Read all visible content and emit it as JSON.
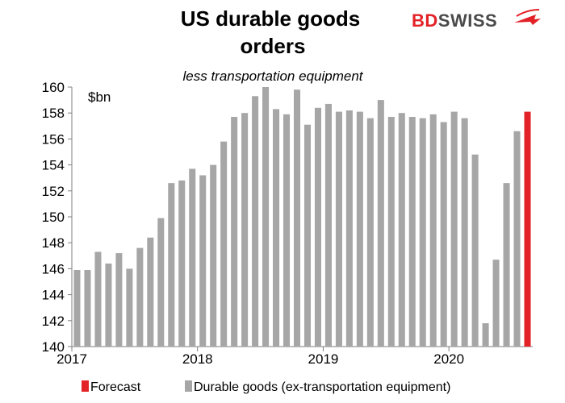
{
  "brand": {
    "bd": "BD",
    "swiss": "SWISS",
    "bd_color": "#e32227",
    "swiss_color": "#4a4a4a"
  },
  "chart_data": {
    "type": "bar",
    "title_lines": [
      "US durable goods",
      "orders"
    ],
    "subtitle": "less transportation equipment",
    "unit": "$bn",
    "ylim": [
      140,
      160
    ],
    "yticks": [
      140,
      142,
      144,
      146,
      148,
      150,
      152,
      154,
      156,
      158,
      160
    ],
    "xticks": [
      {
        "label": "2017",
        "index": 0
      },
      {
        "label": "2018",
        "index": 12
      },
      {
        "label": "2019",
        "index": 24
      },
      {
        "label": "2020",
        "index": 36
      }
    ],
    "grid": false,
    "legend_position": "bottom",
    "series": [
      {
        "name": "Durable goods (ex-transportation equipment)",
        "color": "#a6a6a6",
        "values": [
          145.9,
          145.9,
          147.3,
          146.4,
          147.2,
          146.0,
          147.6,
          148.4,
          149.9,
          152.6,
          152.8,
          153.7,
          153.2,
          154.0,
          155.8,
          157.7,
          158.0,
          159.3,
          160.0,
          158.3,
          157.9,
          159.8,
          157.1,
          158.4,
          158.7,
          158.1,
          158.2,
          158.1,
          157.6,
          159.0,
          157.7,
          158.0,
          157.7,
          157.6,
          157.9,
          157.3,
          158.1,
          157.6,
          154.8,
          141.8,
          146.7,
          152.6,
          156.6,
          null
        ]
      },
      {
        "name": "Forecast",
        "color": "#e32227",
        "values": [
          null,
          null,
          null,
          null,
          null,
          null,
          null,
          null,
          null,
          null,
          null,
          null,
          null,
          null,
          null,
          null,
          null,
          null,
          null,
          null,
          null,
          null,
          null,
          null,
          null,
          null,
          null,
          null,
          null,
          null,
          null,
          null,
          null,
          null,
          null,
          null,
          null,
          null,
          null,
          null,
          null,
          null,
          null,
          158.1
        ]
      }
    ]
  },
  "legend": [
    {
      "label": "Forecast",
      "color": "#e32227"
    },
    {
      "label": "Durable goods (ex-transportation equipment)",
      "color": "#a6a6a6"
    }
  ]
}
